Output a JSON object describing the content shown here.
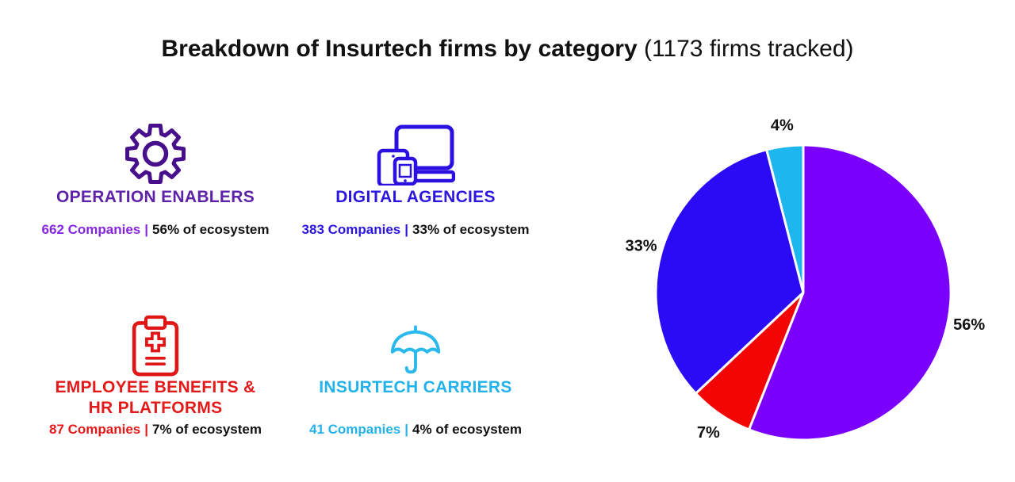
{
  "title": {
    "main": "Breakdown of Insurtech firms by category",
    "suffix": " (1173 firms tracked)",
    "total_firms": "1173"
  },
  "categories": [
    {
      "name": "OPERATION ENABLERS",
      "companies": "662 Companies",
      "separator": "|",
      "share": "56% of ecosystem",
      "icon": "gear-icon",
      "title_color": "#5E22A8",
      "stat_color": "#8527E0",
      "icon_color": "#470F8C"
    },
    {
      "name": "DIGITAL AGENCIES",
      "companies": "383 Companies",
      "separator": "|",
      "share": "33% of ecosystem",
      "icon": "devices-icon",
      "title_color": "#2B16E0",
      "stat_color": "#2B16E0",
      "icon_color": "#2B10E0"
    },
    {
      "name": "EMPLOYEE BENEFITS & HR PLATFORMS",
      "companies": "87 Companies",
      "separator": "|",
      "share": "7% of ecosystem",
      "icon": "medical-clipboard-icon",
      "title_color": "#E31A1A",
      "stat_color": "#E31A1A",
      "icon_color": "#E01616"
    },
    {
      "name": "INSURTECH CARRIERS",
      "companies": "41 Companies",
      "separator": "|",
      "share": "4% of ecosystem",
      "icon": "umbrella-icon",
      "title_color": "#23B3EA",
      "stat_color": "#23B3EA",
      "icon_color": "#29B9EC"
    }
  ],
  "chart_data": {
    "type": "pie",
    "title": "Breakdown of Insurtech firms by category",
    "subtitle": "1173 firms tracked",
    "start_angle_deg": 0,
    "direction": "clockwise",
    "label_position": "outside",
    "stroke": "#FFFFFF",
    "slices": [
      {
        "label": "Operation Enablers",
        "value": 56,
        "display": "56%",
        "companies": 662,
        "color": "#7B00FB"
      },
      {
        "label": "Employee Benefits & HR Platforms",
        "value": 7,
        "display": "7%",
        "companies": 87,
        "color": "#F40505"
      },
      {
        "label": "Digital Agencies",
        "value": 33,
        "display": "33%",
        "companies": 383,
        "color": "#2B0BF5"
      },
      {
        "label": "Insurtech Carriers",
        "value": 4,
        "display": "4%",
        "companies": 41,
        "color": "#1EB6EE"
      }
    ]
  }
}
